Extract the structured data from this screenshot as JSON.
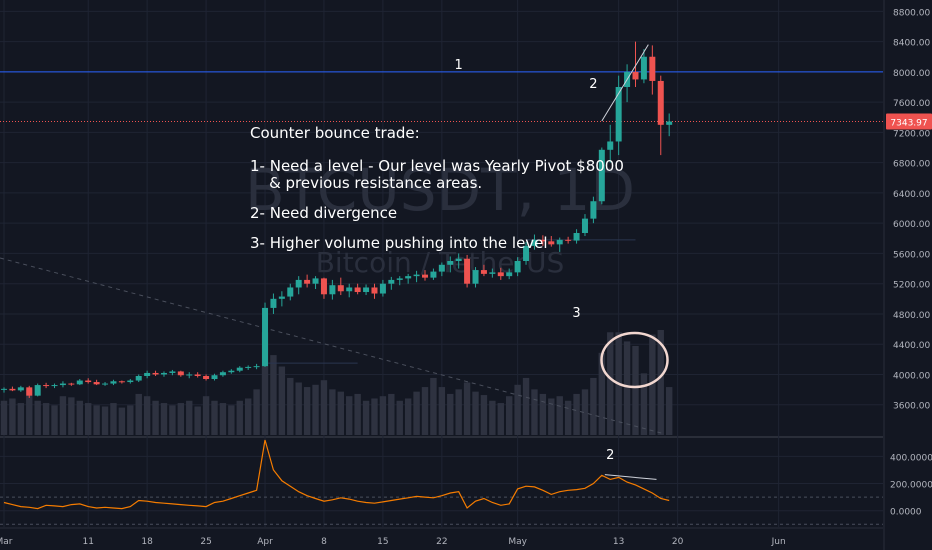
{
  "chart_data": {
    "type": "candlestick",
    "watermark": "BTCUSDT, 1D",
    "watermark_sub": "Bitcoin / TetherUS",
    "price_axis": {
      "ticks": [
        3600,
        4000,
        4400,
        4800,
        5200,
        5600,
        6000,
        6400,
        6800,
        7200,
        7600,
        8000,
        8400,
        8800
      ],
      "tick_labels": [
        "3600.00",
        "4000.00",
        "4400.00",
        "4800.00",
        "5200.00",
        "5600.00",
        "6000.00",
        "6400.00",
        "6800.00",
        "7200.00",
        "7600.00",
        "8000.00",
        "8400.00",
        "8800.00"
      ],
      "ylim": [
        3200,
        8950
      ]
    },
    "last_price": 7343.97,
    "last_price_label": "7343.97",
    "pivot_level": 8000,
    "x_labels": [
      "Mar",
      "11",
      "18",
      "25",
      "Apr",
      "8",
      "15",
      "22",
      "May",
      "13",
      "20",
      "Jun"
    ],
    "x_label_days": [
      0,
      10,
      17,
      24,
      31,
      38,
      45,
      52,
      61,
      73,
      80,
      92
    ],
    "ohlc": [
      [
        3800,
        3830,
        3760,
        3810
      ],
      [
        3810,
        3840,
        3780,
        3790
      ],
      [
        3790,
        3850,
        3770,
        3830
      ],
      [
        3830,
        3850,
        3690,
        3720
      ],
      [
        3720,
        3880,
        3710,
        3860
      ],
      [
        3860,
        3890,
        3820,
        3850
      ],
      [
        3850,
        3880,
        3820,
        3860
      ],
      [
        3860,
        3910,
        3830,
        3880
      ],
      [
        3880,
        3890,
        3850,
        3870
      ],
      [
        3870,
        3940,
        3860,
        3920
      ],
      [
        3920,
        3950,
        3880,
        3900
      ],
      [
        3900,
        3930,
        3860,
        3870
      ],
      [
        3870,
        3900,
        3850,
        3880
      ],
      [
        3880,
        3930,
        3860,
        3910
      ],
      [
        3910,
        3920,
        3880,
        3900
      ],
      [
        3900,
        3940,
        3880,
        3920
      ],
      [
        3920,
        4000,
        3900,
        3980
      ],
      [
        3980,
        4050,
        3950,
        4020
      ],
      [
        4020,
        4050,
        3980,
        4000
      ],
      [
        4000,
        4040,
        3970,
        4020
      ],
      [
        4020,
        4060,
        3990,
        4040
      ],
      [
        4040,
        4050,
        3970,
        3990
      ],
      [
        3990,
        4030,
        3950,
        4000
      ],
      [
        4000,
        4030,
        3960,
        3980
      ],
      [
        3980,
        4000,
        3920,
        3940
      ],
      [
        3940,
        4010,
        3920,
        3990
      ],
      [
        3990,
        4050,
        3970,
        4030
      ],
      [
        4030,
        4070,
        4010,
        4050
      ],
      [
        4050,
        4110,
        4030,
        4090
      ],
      [
        4090,
        4120,
        4060,
        4100
      ],
      [
        4100,
        4140,
        4070,
        4110
      ],
      [
        4110,
        4950,
        4100,
        4880
      ],
      [
        4880,
        5070,
        4800,
        5000
      ],
      [
        5000,
        5100,
        4900,
        5030
      ],
      [
        5030,
        5200,
        4980,
        5150
      ],
      [
        5150,
        5300,
        5060,
        5250
      ],
      [
        5250,
        5320,
        5150,
        5200
      ],
      [
        5200,
        5300,
        5130,
        5270
      ],
      [
        5270,
        5280,
        5000,
        5060
      ],
      [
        5060,
        5250,
        4990,
        5180
      ],
      [
        5180,
        5280,
        5050,
        5100
      ],
      [
        5100,
        5200,
        5020,
        5150
      ],
      [
        5150,
        5200,
        5060,
        5090
      ],
      [
        5090,
        5190,
        5050,
        5150
      ],
      [
        5150,
        5200,
        5000,
        5070
      ],
      [
        5070,
        5250,
        5030,
        5200
      ],
      [
        5200,
        5290,
        5120,
        5250
      ],
      [
        5250,
        5300,
        5180,
        5270
      ],
      [
        5270,
        5330,
        5200,
        5300
      ],
      [
        5300,
        5370,
        5220,
        5320
      ],
      [
        5320,
        5380,
        5240,
        5280
      ],
      [
        5280,
        5400,
        5250,
        5360
      ],
      [
        5360,
        5480,
        5300,
        5450
      ],
      [
        5450,
        5560,
        5350,
        5500
      ],
      [
        5500,
        5600,
        5400,
        5530
      ],
      [
        5530,
        5580,
        5150,
        5200
      ],
      [
        5200,
        5420,
        5150,
        5380
      ],
      [
        5380,
        5450,
        5300,
        5330
      ],
      [
        5330,
        5400,
        5280,
        5350
      ],
      [
        5350,
        5410,
        5250,
        5300
      ],
      [
        5300,
        5400,
        5260,
        5350
      ],
      [
        5350,
        5550,
        5300,
        5500
      ],
      [
        5500,
        5750,
        5450,
        5700
      ],
      [
        5700,
        5850,
        5650,
        5780
      ],
      [
        5780,
        5840,
        5700,
        5760
      ],
      [
        5760,
        5830,
        5690,
        5720
      ],
      [
        5720,
        5810,
        5620,
        5780
      ],
      [
        5780,
        5820,
        5730,
        5770
      ],
      [
        5770,
        5920,
        5730,
        5870
      ],
      [
        5870,
        6120,
        5830,
        6060
      ],
      [
        6060,
        6350,
        6000,
        6290
      ],
      [
        6290,
        7000,
        6250,
        6970
      ],
      [
        6970,
        7300,
        6800,
        7080
      ],
      [
        7080,
        7950,
        6900,
        7800
      ],
      [
        7800,
        8100,
        7600,
        8000
      ],
      [
        8000,
        8400,
        7800,
        7900
      ],
      [
        7900,
        8300,
        7850,
        8200
      ],
      [
        8200,
        8350,
        7700,
        7880
      ],
      [
        7880,
        7950,
        6900,
        7300
      ],
      [
        7300,
        7450,
        7150,
        7344
      ]
    ],
    "volume": [
      30,
      32,
      28,
      40,
      30,
      28,
      26,
      34,
      33,
      30,
      28,
      26,
      25,
      28,
      24,
      26,
      36,
      34,
      30,
      28,
      26,
      28,
      30,
      25,
      34,
      30,
      28,
      26,
      30,
      32,
      40,
      90,
      70,
      60,
      50,
      46,
      42,
      44,
      48,
      40,
      38,
      34,
      36,
      30,
      32,
      34,
      36,
      30,
      32,
      38,
      42,
      50,
      42,
      36,
      40,
      46,
      38,
      35,
      30,
      28,
      34,
      44,
      50,
      40,
      36,
      32,
      34,
      30,
      36,
      40,
      50,
      72,
      90,
      90,
      82,
      78,
      54,
      88,
      92,
      42
    ],
    "indicator_axis": {
      "ticks": [
        0,
        200,
        400
      ],
      "tick_labels": [
        "0.0000",
        "200.0000",
        "400.0000"
      ],
      "ylim": [
        -120,
        520
      ],
      "dashed_levels": [
        -100,
        100
      ]
    },
    "indicator": [
      60,
      45,
      30,
      25,
      15,
      40,
      35,
      30,
      45,
      50,
      30,
      20,
      25,
      20,
      15,
      30,
      75,
      70,
      60,
      55,
      50,
      45,
      40,
      35,
      30,
      60,
      70,
      90,
      110,
      130,
      150,
      520,
      300,
      220,
      180,
      140,
      110,
      90,
      70,
      80,
      95,
      85,
      70,
      60,
      55,
      65,
      75,
      85,
      95,
      105,
      100,
      95,
      110,
      130,
      140,
      20,
      70,
      90,
      60,
      40,
      50,
      160,
      180,
      175,
      150,
      120,
      140,
      150,
      155,
      165,
      200,
      260,
      230,
      245,
      210,
      190,
      160,
      130,
      90,
      75
    ],
    "annotations": [
      {
        "text": "1",
        "day": 54,
        "price": 8000
      },
      {
        "text": "2",
        "day": 70,
        "price": 7750
      },
      {
        "text": "3",
        "day": 68,
        "price": 4720
      },
      {
        "text": "2",
        "day": 72,
        "indicator": 380
      }
    ]
  },
  "note": {
    "title": "Counter bounce trade:",
    "lines": [
      "1- Need a level - Our level was Yearly Pivot $8000",
      "    & previous resistance areas.",
      "2- Need divergence",
      "3- Higher volume pushing into the level"
    ]
  },
  "colors": {
    "up": "#26a69a",
    "down": "#ef5350",
    "background": "#131722",
    "grid": "#1f2433",
    "pivot": "#2962ff",
    "indicator_line": "#f57c00",
    "price_line": "#ef5350"
  }
}
